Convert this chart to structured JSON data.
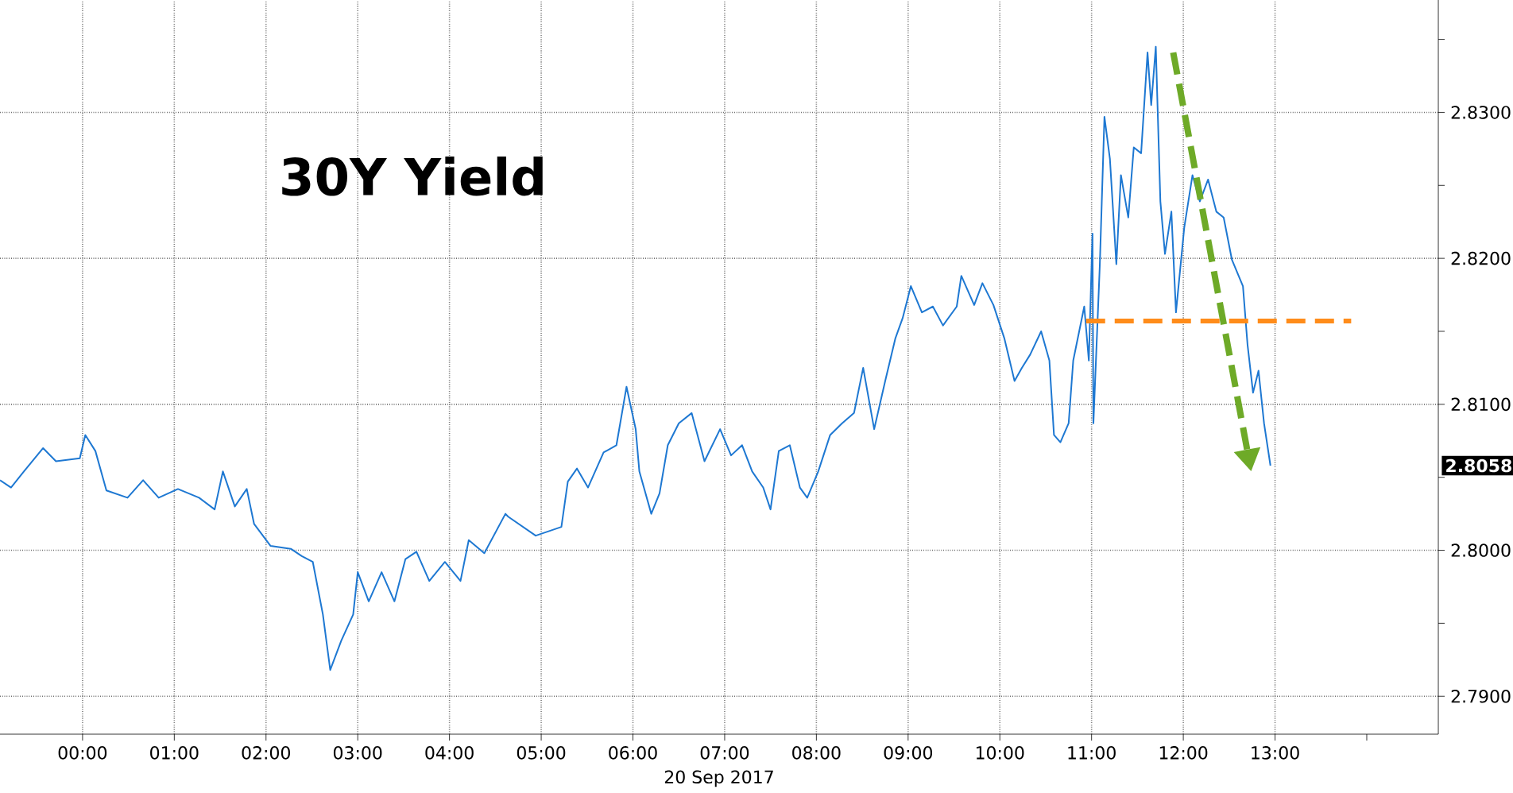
{
  "chart_data": {
    "type": "line",
    "title": "30Y Yield",
    "xlabel": "20 Sep 2017",
    "xlim": [
      -0.9,
      14.78
    ],
    "ylim": [
      2.7874,
      2.8377
    ],
    "xticks": [
      {
        "value": 0,
        "label": "00:00"
      },
      {
        "value": 1,
        "label": "01:00"
      },
      {
        "value": 2,
        "label": "02:00"
      },
      {
        "value": 3,
        "label": "03:00"
      },
      {
        "value": 4,
        "label": "04:00"
      },
      {
        "value": 5,
        "label": "05:00"
      },
      {
        "value": 6,
        "label": "06:00"
      },
      {
        "value": 7,
        "label": "07:00"
      },
      {
        "value": 8,
        "label": "08:00"
      },
      {
        "value": 9,
        "label": "09:00"
      },
      {
        "value": 10,
        "label": "10:00"
      },
      {
        "value": 11,
        "label": "11:00"
      },
      {
        "value": 12,
        "label": "12:00"
      },
      {
        "value": 13,
        "label": "13:00"
      },
      {
        "value": 14,
        "label": null
      }
    ],
    "yticks": [
      {
        "value": 2.79,
        "label": "2.7900"
      },
      {
        "value": 2.795,
        "label": null
      },
      {
        "value": 2.8,
        "label": "2.8000"
      },
      {
        "value": 2.805,
        "label": null
      },
      {
        "value": 2.81,
        "label": "2.8100"
      },
      {
        "value": 2.815,
        "label": null
      },
      {
        "value": 2.82,
        "label": "2.8200"
      },
      {
        "value": 2.825,
        "label": null
      },
      {
        "value": 2.83,
        "label": "2.8300"
      },
      {
        "value": 2.835,
        "label": null
      }
    ],
    "grid": true,
    "annotations": [
      "2.8058"
    ],
    "series": [
      {
        "color": "#1e78d2",
        "line_style": "solid",
        "x": [
          -0.9,
          -0.78,
          -0.64,
          -0.43,
          -0.29,
          -0.03,
          0.03,
          0.14,
          0.26,
          0.49,
          0.66,
          0.83,
          1.04,
          1.27,
          1.44,
          1.53,
          1.66,
          1.79,
          1.87,
          2.05,
          2.27,
          2.39,
          2.51,
          2.62,
          2.7,
          2.82,
          2.95,
          3.0,
          3.12,
          3.26,
          3.4,
          3.52,
          3.64,
          3.78,
          3.95,
          4.12,
          4.21,
          4.38,
          4.61,
          4.64,
          4.94,
          5.22,
          5.29,
          5.39,
          5.51,
          5.68,
          5.82,
          5.93,
          6.03,
          6.07,
          6.2,
          6.29,
          6.38,
          6.5,
          6.64,
          6.78,
          6.95,
          7.07,
          7.19,
          7.3,
          7.42,
          7.5,
          7.59,
          7.71,
          7.82,
          7.9,
          8.02,
          8.15,
          8.28,
          8.41,
          8.51,
          8.63,
          8.75,
          8.86,
          8.94,
          9.03,
          9.15,
          9.27,
          9.38,
          9.53,
          9.58,
          9.72,
          9.81,
          9.93,
          10.05,
          10.16,
          10.24,
          10.33,
          10.45,
          10.54,
          10.59,
          10.66,
          10.75,
          10.8,
          10.92,
          10.97,
          11.01,
          11.02,
          11.09,
          11.14,
          11.2,
          11.27,
          11.32,
          11.4,
          11.46,
          11.54,
          11.61,
          11.65,
          11.7,
          11.75,
          11.8,
          11.87,
          11.92,
          12.01,
          12.1,
          12.18,
          12.27,
          12.36,
          12.44,
          12.53,
          12.65,
          12.7,
          12.76,
          12.82,
          12.88,
          12.95
        ],
        "values": [
          2.8048,
          2.8043,
          2.8054,
          2.807,
          2.8061,
          2.8063,
          2.8079,
          2.8068,
          2.8041,
          2.8036,
          2.8048,
          2.8036,
          2.8042,
          2.8036,
          2.8028,
          2.8054,
          2.803,
          2.8042,
          2.8018,
          2.8003,
          2.8001,
          2.7996,
          2.7992,
          2.7956,
          2.7918,
          2.7938,
          2.7956,
          2.7985,
          2.7965,
          2.7985,
          2.7965,
          2.7994,
          2.7999,
          2.7979,
          2.7992,
          2.7979,
          2.8007,
          2.7998,
          2.8025,
          2.8023,
          2.801,
          2.8016,
          2.8047,
          2.8056,
          2.8043,
          2.8067,
          2.8072,
          2.8112,
          2.8083,
          2.8054,
          2.8025,
          2.8039,
          2.8072,
          2.8087,
          2.8094,
          2.8061,
          2.8083,
          2.8065,
          2.8072,
          2.8054,
          2.8043,
          2.8028,
          2.8068,
          2.8072,
          2.8043,
          2.8036,
          2.8054,
          2.8079,
          2.8087,
          2.8094,
          2.8125,
          2.8083,
          2.8116,
          2.8145,
          2.8159,
          2.8181,
          2.8163,
          2.8167,
          2.8154,
          2.8167,
          2.8188,
          2.8168,
          2.8183,
          2.8168,
          2.8145,
          2.8116,
          2.8125,
          2.8134,
          2.815,
          2.813,
          2.8079,
          2.8074,
          2.8087,
          2.813,
          2.8167,
          2.813,
          2.8217,
          2.8087,
          2.8196,
          2.8297,
          2.8268,
          2.8196,
          2.8257,
          2.8228,
          2.8276,
          2.8272,
          2.8341,
          2.8305,
          2.8345,
          2.8239,
          2.8203,
          2.8232,
          2.8163,
          2.8221,
          2.8257,
          2.8239,
          2.8254,
          2.8232,
          2.8228,
          2.8199,
          2.8181,
          2.8141,
          2.8108,
          2.8123,
          2.8087,
          2.8058
        ]
      },
      {
        "color": "#ff8c1a",
        "line_style": "dashed",
        "x": [
          10.94,
          13.83
        ],
        "values": [
          2.8157,
          2.8157
        ]
      }
    ]
  }
}
